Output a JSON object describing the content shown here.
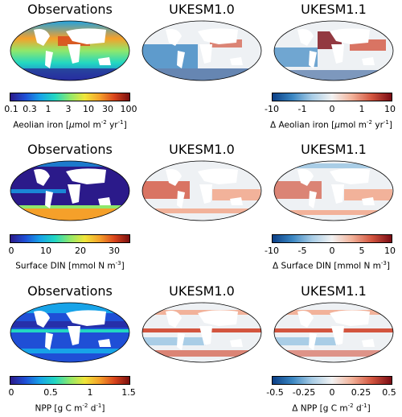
{
  "rows": [
    {
      "titles": [
        "Observations",
        "UKESM1.0",
        "UKESM1.1"
      ],
      "abs_bar": {
        "ticks": [
          "0.1",
          "0.3",
          "1",
          "3",
          "10",
          "30",
          "100"
        ],
        "label_pre": "Aeolian iron [",
        "label_mu": "μ",
        "label_mid": "mol m",
        "label_exp1": "-2",
        "label_mid2": " yr",
        "label_exp2": "-1",
        "label_post": "]"
      },
      "diff_bar": {
        "ticks": [
          "-10",
          "-1",
          "0",
          "1",
          "10"
        ],
        "label_delta": "Δ",
        "label_pre": " Aeolian iron [",
        "label_mu": "μ",
        "label_mid": "mol m",
        "label_exp1": "-2",
        "label_mid2": " yr",
        "label_exp2": "-1",
        "label_post": "]"
      }
    },
    {
      "titles": [
        "Observations",
        "UKESM1.0",
        "UKESM1.1"
      ],
      "abs_bar": {
        "ticks": [
          "0",
          "10",
          "20",
          "30"
        ],
        "label_pre": "Surface DIN [mmol N m",
        "label_exp1": "-3",
        "label_post": "]"
      },
      "diff_bar": {
        "ticks": [
          "-10",
          "-5",
          "0",
          "5",
          "10"
        ],
        "label_delta": "Δ",
        "label_pre": " Surface DIN [mmol N m",
        "label_exp1": "-3",
        "label_post": "]"
      }
    },
    {
      "titles": [
        "Observations",
        "UKESM1.0",
        "UKESM1.1"
      ],
      "abs_bar": {
        "ticks": [
          "0",
          "0.5",
          "1",
          "1.5"
        ],
        "label_pre": "NPP [g C m",
        "label_exp1": "-2",
        "label_mid": " d",
        "label_exp2": "-1",
        "label_post": "]"
      },
      "diff_bar": {
        "ticks": [
          "-0.5",
          "-0.25",
          "0",
          "0.25",
          "0.5"
        ],
        "label_delta": "Δ",
        "label_pre": " NPP [g C m",
        "label_exp1": "-2",
        "label_mid": " d",
        "label_exp2": "-1",
        "label_post": "]"
      }
    }
  ],
  "colors": {
    "jet": [
      "#2b1a8a",
      "#1f4fd6",
      "#17a3e8",
      "#22d7c2",
      "#8fe86b",
      "#f0e63a",
      "#f5a02a",
      "#d9441c",
      "#7a0f0f"
    ],
    "diverging": [
      "#0b3f86",
      "#3a86c2",
      "#a9cde6",
      "#f2f2f2",
      "#f2b29a",
      "#d3553f",
      "#7a0b14"
    ],
    "land": "#ffffff",
    "ocean_neutral": "#eef1f4"
  }
}
